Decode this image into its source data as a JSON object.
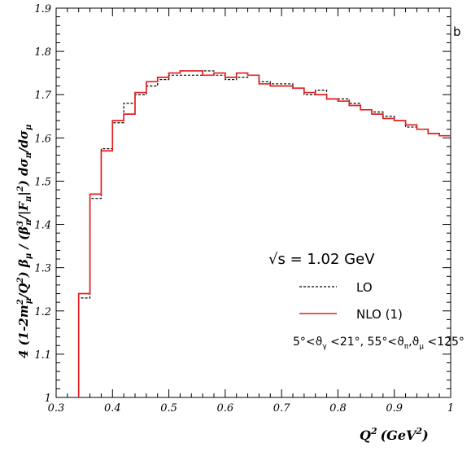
{
  "chart_data": {
    "type": "line",
    "panel_label": "b",
    "xlabel": "Q",
    "xlabel_sup": "2",
    "xlabel_unit": "(GeV",
    "xlabel_unit_sup": "2",
    "xlabel_close": ")",
    "ylabel": "4 (1-2m²μ/Q²) βμ / (β³π/|Fπ|²) dσπ/dσμ",
    "xlim": [
      0.3,
      1.0
    ],
    "ylim": [
      1.0,
      1.9
    ],
    "x_ticks": [
      0.3,
      0.4,
      0.5,
      0.6,
      0.7,
      0.8,
      0.9,
      1.0
    ],
    "x_tick_labels": [
      "0.3",
      "0.4",
      "0.5",
      "0.6",
      "0.7",
      "0.8",
      "0.9",
      "1"
    ],
    "y_ticks": [
      1.0,
      1.1,
      1.2,
      1.3,
      1.4,
      1.5,
      1.6,
      1.7,
      1.8,
      1.9
    ],
    "y_tick_labels": [
      "1",
      "1.1",
      "1.2",
      "1.3",
      "1.4",
      "1.5",
      "1.6",
      "1.7",
      "1.8",
      "1.9"
    ],
    "bin_edges": [
      0.34,
      0.36,
      0.38,
      0.4,
      0.42,
      0.44,
      0.46,
      0.48,
      0.5,
      0.52,
      0.54,
      0.56,
      0.58,
      0.6,
      0.62,
      0.64,
      0.66,
      0.68,
      0.7,
      0.72,
      0.74,
      0.76,
      0.78,
      0.8,
      0.82,
      0.84,
      0.86,
      0.88,
      0.9,
      0.92,
      0.94,
      0.96,
      0.98,
      1.0
    ],
    "series": [
      {
        "name": "LO",
        "color": "#000000",
        "style": "dashed",
        "values": [
          1.23,
          1.46,
          1.575,
          1.635,
          1.68,
          1.7,
          1.72,
          1.735,
          1.745,
          1.745,
          1.745,
          1.755,
          1.745,
          1.735,
          1.74,
          1.745,
          1.73,
          1.725,
          1.725,
          1.715,
          1.7,
          1.71,
          1.69,
          1.69,
          1.68,
          1.665,
          1.66,
          1.65,
          1.64,
          1.625,
          1.62,
          1.61,
          1.605
        ]
      },
      {
        "name": "NLO (1)",
        "color": "#e02020",
        "style": "solid",
        "values": [
          1.24,
          1.47,
          1.57,
          1.64,
          1.655,
          1.705,
          1.73,
          1.74,
          1.75,
          1.755,
          1.755,
          1.745,
          1.75,
          1.74,
          1.75,
          1.745,
          1.725,
          1.72,
          1.72,
          1.715,
          1.705,
          1.7,
          1.69,
          1.685,
          1.675,
          1.665,
          1.655,
          1.645,
          1.64,
          1.63,
          1.62,
          1.61,
          1.605
        ]
      }
    ],
    "legend_position": "bottom-right",
    "annotations": {
      "energy": "√s = 1.02 GeV",
      "cuts": "5°<ϑ",
      "cuts_sub1": "γ",
      "cuts_mid": " <21°, 55°<ϑ",
      "cuts_sub2": "π",
      "cuts_mid2": ",ϑ",
      "cuts_sub3": "μ",
      "cuts_end": " <125°"
    },
    "grid": false
  }
}
